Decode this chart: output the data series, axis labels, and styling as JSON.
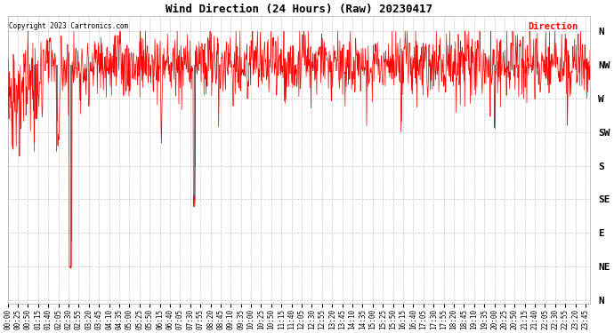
{
  "title": "Wind Direction (24 Hours) (Raw) 20230417",
  "copyright": "Copyright 2023 Cartronics.com",
  "legend_label": "Direction",
  "line_color": "red",
  "bg_color": "white",
  "grid_color": "#bbbbbb",
  "title_color": "black",
  "ytick_labels": [
    "N",
    "NW",
    "W",
    "SW",
    "S",
    "SE",
    "E",
    "NE",
    "N"
  ],
  "ytick_values": [
    360,
    315,
    270,
    225,
    180,
    135,
    90,
    45,
    0
  ],
  "ylim": [
    -5,
    380
  ],
  "xlim": [
    0,
    1435
  ],
  "seed": 99,
  "figsize": [
    6.9,
    3.75
  ],
  "dpi": 100
}
